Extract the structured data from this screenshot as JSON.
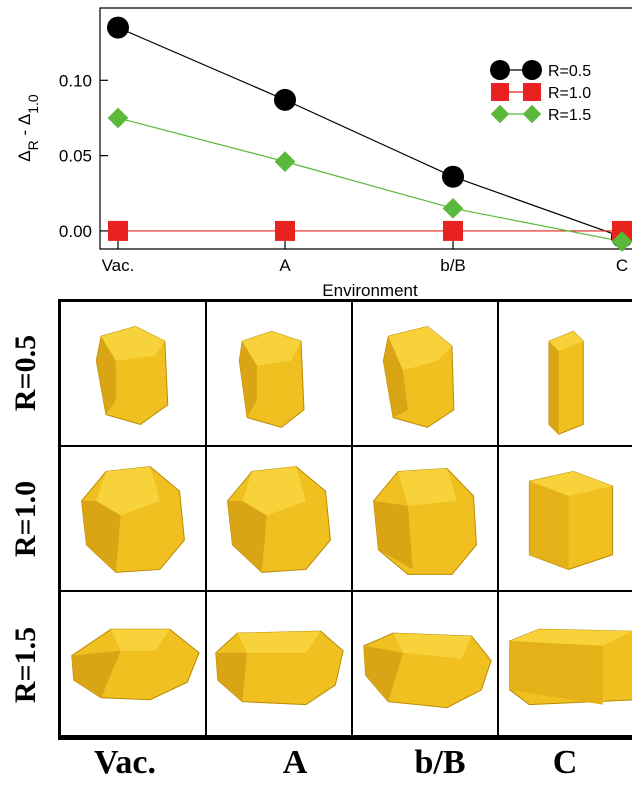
{
  "chart_data": {
    "type": "line",
    "categories": [
      "Vac.",
      "A",
      "b/B",
      "C"
    ],
    "xlabel": "Environment",
    "ylabel_main": "Δ",
    "ylabel_sub1": "R",
    "ylabel_mid": " - Δ",
    "ylabel_sub2": "1.0",
    "ylim": [
      -0.012,
      0.148
    ],
    "yticks": [
      "0.00",
      "0.05",
      "0.10"
    ],
    "ytick_values": [
      0,
      0.05,
      0.1
    ],
    "legend_position": "top-right",
    "series": [
      {
        "name": "R=0.5",
        "values": [
          0.135,
          0.087,
          0.036,
          -0.004
        ],
        "marker": "circle",
        "marker_color": "#000000",
        "line_color": "#000000"
      },
      {
        "name": "R=1.0",
        "values": [
          0.0,
          0.0,
          0.0,
          0.0
        ],
        "marker": "square",
        "marker_color": "#e8221e",
        "line_color": "#e8221e"
      },
      {
        "name": "R=1.5",
        "values": [
          0.075,
          0.046,
          0.015,
          -0.007
        ],
        "marker": "diamond",
        "marker_color": "#5ab83a",
        "line_color": "#5ab83a"
      }
    ]
  },
  "panel": {
    "row_labels": [
      "R=0.5",
      "R=1.0",
      "R=1.5"
    ],
    "col_labels": [
      "Vac.",
      "A",
      "b/B",
      "C"
    ],
    "particle_color": "#f0c020"
  }
}
